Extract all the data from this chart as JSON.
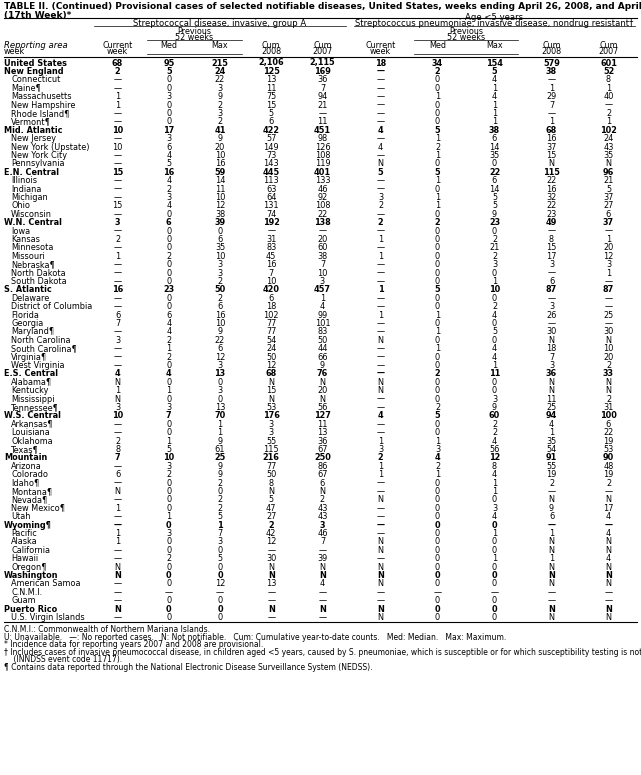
{
  "title": "TABLE II. (Continued) Provisional cases of selected notifiable diseases, United States, weeks ending April 26, 2008, and April 28, 2007",
  "title2": "(17th Week)*",
  "col_header_1": "Streptococcal disease, invasive, group A",
  "col_header_2": "Streptococcus pneumoniae, invasive disease, nondrug resistant†",
  "col_header_2b": "Age <5 years",
  "rows": [
    [
      "United States",
      "68",
      "95",
      "215",
      "2,106",
      "2,115",
      "18",
      "34",
      "154",
      "579",
      "601"
    ],
    [
      "New England",
      "2",
      "5",
      "24",
      "125",
      "169",
      "—",
      "2",
      "5",
      "38",
      "52"
    ],
    [
      "Connecticut",
      "—",
      "0",
      "22",
      "13",
      "36",
      "—",
      "0",
      "4",
      "—",
      "8"
    ],
    [
      "Maine¶",
      "—",
      "0",
      "3",
      "11",
      "7",
      "—",
      "0",
      "1",
      "1",
      "1"
    ],
    [
      "Massachusetts",
      "1",
      "3",
      "9",
      "75",
      "94",
      "—",
      "1",
      "4",
      "29",
      "40"
    ],
    [
      "New Hampshire",
      "1",
      "0",
      "2",
      "15",
      "21",
      "—",
      "0",
      "1",
      "7",
      "—"
    ],
    [
      "Rhode Island¶",
      "—",
      "0",
      "3",
      "5",
      "—",
      "—",
      "0",
      "1",
      "—",
      "2"
    ],
    [
      "Vermont¶",
      "—",
      "0",
      "2",
      "6",
      "11",
      "—",
      "0",
      "1",
      "1",
      "1"
    ],
    [
      "Mid. Atlantic",
      "10",
      "17",
      "41",
      "422",
      "451",
      "4",
      "5",
      "38",
      "68",
      "102"
    ],
    [
      "New Jersey",
      "—",
      "3",
      "9",
      "57",
      "98",
      "—",
      "1",
      "6",
      "16",
      "24"
    ],
    [
      "New York (Upstate)",
      "10",
      "6",
      "20",
      "149",
      "126",
      "4",
      "2",
      "14",
      "37",
      "43"
    ],
    [
      "New York City",
      "—",
      "4",
      "10",
      "73",
      "108",
      "—",
      "1",
      "35",
      "15",
      "35"
    ],
    [
      "Pennsylvania",
      "—",
      "5",
      "16",
      "143",
      "119",
      "N",
      "0",
      "0",
      "N",
      "N"
    ],
    [
      "E.N. Central",
      "15",
      "16",
      "59",
      "445",
      "401",
      "5",
      "5",
      "22",
      "115",
      "96"
    ],
    [
      "Illinois",
      "—",
      "4",
      "14",
      "113",
      "133",
      "—",
      "1",
      "6",
      "22",
      "21"
    ],
    [
      "Indiana",
      "—",
      "2",
      "11",
      "63",
      "46",
      "—",
      "0",
      "14",
      "16",
      "5"
    ],
    [
      "Michigan",
      "—",
      "3",
      "10",
      "64",
      "92",
      "3",
      "1",
      "5",
      "32",
      "37"
    ],
    [
      "Ohio",
      "15",
      "4",
      "12",
      "131",
      "108",
      "2",
      "1",
      "5",
      "22",
      "27"
    ],
    [
      "Wisconsin",
      "—",
      "0",
      "38",
      "74",
      "22",
      "—",
      "0",
      "9",
      "23",
      "6"
    ],
    [
      "W.N. Central",
      "3",
      "6",
      "39",
      "192",
      "138",
      "2",
      "2",
      "23",
      "49",
      "37"
    ],
    [
      "Iowa",
      "—",
      "0",
      "0",
      "—",
      "—",
      "—",
      "0",
      "0",
      "—",
      "—"
    ],
    [
      "Kansas",
      "2",
      "0",
      "6",
      "31",
      "20",
      "1",
      "0",
      "2",
      "8",
      "1"
    ],
    [
      "Minnesota",
      "—",
      "0",
      "35",
      "83",
      "60",
      "—",
      "0",
      "21",
      "15",
      "20"
    ],
    [
      "Missouri",
      "1",
      "2",
      "10",
      "45",
      "38",
      "1",
      "0",
      "2",
      "17",
      "12"
    ],
    [
      "Nebraska¶",
      "—",
      "0",
      "3",
      "16",
      "7",
      "—",
      "0",
      "3",
      "3",
      "3"
    ],
    [
      "North Dakota",
      "—",
      "0",
      "3",
      "7",
      "10",
      "—",
      "0",
      "0",
      "—",
      "1"
    ],
    [
      "South Dakota",
      "—",
      "0",
      "2",
      "10",
      "3",
      "—",
      "0",
      "1",
      "6",
      "—"
    ],
    [
      "S. Atlantic",
      "16",
      "23",
      "50",
      "420",
      "457",
      "1",
      "5",
      "10",
      "87",
      "87"
    ],
    [
      "Delaware",
      "—",
      "0",
      "2",
      "6",
      "1",
      "—",
      "0",
      "0",
      "—",
      "—"
    ],
    [
      "District of Columbia",
      "—",
      "0",
      "6",
      "18",
      "4",
      "—",
      "0",
      "2",
      "3",
      "—"
    ],
    [
      "Florida",
      "6",
      "6",
      "16",
      "102",
      "99",
      "1",
      "1",
      "4",
      "26",
      "25"
    ],
    [
      "Georgia",
      "7",
      "4",
      "10",
      "77",
      "101",
      "—",
      "0",
      "0",
      "—",
      "—"
    ],
    [
      "Maryland¶",
      "—",
      "4",
      "9",
      "77",
      "83",
      "—",
      "1",
      "5",
      "30",
      "30"
    ],
    [
      "North Carolina",
      "3",
      "2",
      "22",
      "54",
      "50",
      "N",
      "0",
      "0",
      "N",
      "N"
    ],
    [
      "South Carolina¶",
      "—",
      "1",
      "6",
      "24",
      "44",
      "—",
      "1",
      "4",
      "18",
      "10"
    ],
    [
      "Virginia¶",
      "—",
      "2",
      "12",
      "50",
      "66",
      "—",
      "0",
      "4",
      "7",
      "20"
    ],
    [
      "West Virginia",
      "—",
      "0",
      "3",
      "12",
      "9",
      "—",
      "0",
      "1",
      "3",
      "2"
    ],
    [
      "E.S. Central",
      "4",
      "4",
      "13",
      "68",
      "76",
      "—",
      "2",
      "11",
      "36",
      "33"
    ],
    [
      "Alabama¶",
      "N",
      "0",
      "0",
      "N",
      "N",
      "N",
      "0",
      "0",
      "N",
      "N"
    ],
    [
      "Kentucky",
      "1",
      "1",
      "3",
      "15",
      "20",
      "N",
      "0",
      "0",
      "N",
      "N"
    ],
    [
      "Mississippi",
      "N",
      "0",
      "0",
      "N",
      "N",
      "—",
      "0",
      "3",
      "11",
      "2"
    ],
    [
      "Tennessee¶",
      "3",
      "3",
      "13",
      "53",
      "56",
      "—",
      "2",
      "9",
      "25",
      "31"
    ],
    [
      "W.S. Central",
      "10",
      "7",
      "70",
      "176",
      "127",
      "4",
      "5",
      "60",
      "94",
      "100"
    ],
    [
      "Arkansas¶",
      "—",
      "0",
      "1",
      "3",
      "11",
      "—",
      "0",
      "2",
      "4",
      "6"
    ],
    [
      "Louisiana",
      "—",
      "0",
      "1",
      "3",
      "13",
      "—",
      "0",
      "2",
      "1",
      "22"
    ],
    [
      "Oklahoma",
      "2",
      "1",
      "9",
      "55",
      "36",
      "1",
      "1",
      "4",
      "35",
      "19"
    ],
    [
      "Texas¶",
      "8",
      "5",
      "61",
      "115",
      "67",
      "3",
      "3",
      "56",
      "54",
      "53"
    ],
    [
      "Mountain",
      "7",
      "10",
      "25",
      "216",
      "250",
      "2",
      "4",
      "12",
      "91",
      "90"
    ],
    [
      "Arizona",
      "—",
      "3",
      "9",
      "77",
      "86",
      "1",
      "2",
      "8",
      "55",
      "48"
    ],
    [
      "Colorado",
      "6",
      "2",
      "9",
      "50",
      "67",
      "1",
      "1",
      "4",
      "19",
      "19"
    ],
    [
      "Idaho¶",
      "—",
      "0",
      "2",
      "8",
      "6",
      "—",
      "0",
      "1",
      "2",
      "2"
    ],
    [
      "Montana¶",
      "N",
      "0",
      "0",
      "N",
      "N",
      "—",
      "0",
      "1",
      "—",
      "—"
    ],
    [
      "Nevada¶",
      "—",
      "0",
      "2",
      "5",
      "2",
      "N",
      "0",
      "0",
      "N",
      "N"
    ],
    [
      "New Mexico¶",
      "1",
      "0",
      "2",
      "47",
      "43",
      "—",
      "0",
      "3",
      "9",
      "17"
    ],
    [
      "Utah",
      "—",
      "1",
      "5",
      "27",
      "43",
      "—",
      "0",
      "4",
      "6",
      "4"
    ],
    [
      "Wyoming¶",
      "—",
      "0",
      "1",
      "2",
      "3",
      "—",
      "0",
      "0",
      "—",
      "—"
    ],
    [
      "Pacific",
      "1",
      "3",
      "7",
      "42",
      "46",
      "—",
      "0",
      "1",
      "1",
      "4"
    ],
    [
      "Alaska",
      "1",
      "0",
      "3",
      "12",
      "7",
      "N",
      "0",
      "0",
      "N",
      "N"
    ],
    [
      "California",
      "—",
      "0",
      "0",
      "—",
      "—",
      "N",
      "0",
      "0",
      "N",
      "N"
    ],
    [
      "Hawaii",
      "—",
      "2",
      "5",
      "30",
      "39",
      "—",
      "0",
      "1",
      "1",
      "4"
    ],
    [
      "Oregon¶",
      "N",
      "0",
      "0",
      "N",
      "N",
      "N",
      "0",
      "0",
      "N",
      "N"
    ],
    [
      "Washington",
      "N",
      "0",
      "0",
      "N",
      "N",
      "N",
      "0",
      "0",
      "N",
      "N"
    ],
    [
      "American Samoa",
      "—",
      "0",
      "12",
      "13",
      "4",
      "N",
      "0",
      "0",
      "N",
      "N"
    ],
    [
      "C.N.M.I.",
      "—",
      "—",
      "—",
      "—",
      "—",
      "—",
      "—",
      "—",
      "—",
      "—"
    ],
    [
      "Guam",
      "—",
      "0",
      "0",
      "—",
      "—",
      "—",
      "0",
      "0",
      "—",
      "—"
    ],
    [
      "Puerto Rico",
      "N",
      "0",
      "0",
      "N",
      "N",
      "N",
      "0",
      "0",
      "N",
      "N"
    ],
    [
      "U.S. Virgin Islands",
      "—",
      "0",
      "0",
      "—",
      "—",
      "N",
      "0",
      "0",
      "N",
      "N"
    ]
  ],
  "bold_rows": [
    0,
    1,
    8,
    13,
    19,
    27,
    37,
    42,
    47,
    55,
    61,
    65
  ],
  "footnotes": [
    "C.N.M.I.: Commonwealth of Northern Mariana Islands.",
    "U: Unavailable.   —: No reported cases.   N: Not notifiable.   Cum: Cumulative year-to-date counts.   Med: Median.   Max: Maximum.",
    "* Incidence data for reporting years 2007 and 2008 are provisional.",
    "† Includes cases of invasive pneumococcal disease, in children aged <5 years, caused by S. pneumoniae, which is susceptible or for which susceptibility testing is not available",
    "    (INNDSS event code 11717).",
    "¶ Contains data reported through the National Electronic Disease Surveillance System (NEDSS)."
  ]
}
